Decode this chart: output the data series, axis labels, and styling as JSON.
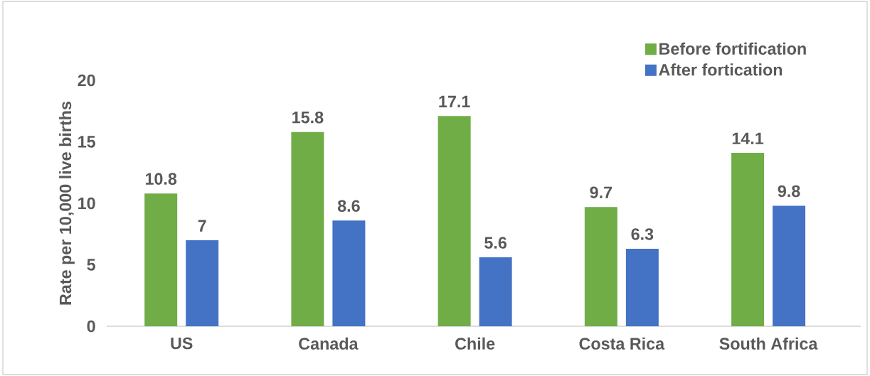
{
  "chart_data": {
    "type": "bar",
    "ylabel": "Rate per 10,000 live births",
    "categories": [
      "US",
      "Canada",
      "Chile",
      "Costa Rica",
      "South Africa"
    ],
    "series": [
      {
        "name": "Before fortification",
        "color": "#70ad47",
        "values": [
          10.8,
          15.8,
          17.1,
          9.7,
          14.1
        ]
      },
      {
        "name": "After fortication",
        "color": "#4472c4",
        "values": [
          7,
          8.6,
          5.6,
          6.3,
          9.8
        ]
      }
    ],
    "ylim": [
      0,
      20
    ],
    "yticks": [
      0,
      5,
      10,
      15,
      20
    ],
    "data_labels": true,
    "legend": "top right"
  }
}
